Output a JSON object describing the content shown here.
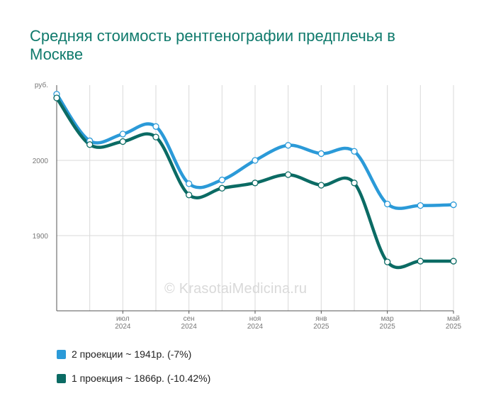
{
  "title": "Средняя стоимость рентгенографии предплечья в Москве",
  "watermark": "© KrasotaiMedicina.ru",
  "colors": {
    "series1": "#2b9ad8",
    "series2": "#0b6b64",
    "grid": "#d9d9d9",
    "axis": "#555555"
  },
  "legend": [
    {
      "label": "2 проекции ~ 1941р. (-7%)",
      "color": "#2b9ad8"
    },
    {
      "label": "1 проекция ~ 1866р. (-10.42%)",
      "color": "#0b6b64"
    }
  ],
  "chart_data": {
    "type": "line",
    "y_unit": "руб.",
    "ylim": [
      1800,
      2100
    ],
    "yticks": [
      1900,
      2000
    ],
    "grid": true,
    "x_ticks": [
      {
        "month": "июл",
        "year": "2024"
      },
      {
        "month": "сен",
        "year": "2024"
      },
      {
        "month": "ноя",
        "year": "2024"
      },
      {
        "month": "янв",
        "year": "2025"
      },
      {
        "month": "мар",
        "year": "2025"
      },
      {
        "month": "май",
        "year": "2025"
      }
    ],
    "categories": [
      "2024-05",
      "2024-06",
      "2024-07",
      "2024-08",
      "2024-09",
      "2024-10",
      "2024-11",
      "2024-12",
      "2025-01",
      "2025-02",
      "2025-03",
      "2025-04",
      "2025-05"
    ],
    "series": [
      {
        "name": "2 проекции",
        "color": "#2b9ad8",
        "values": [
          2088,
          2026,
          2035,
          2045,
          1969,
          1974,
          2000,
          2020,
          2009,
          2012,
          1942,
          1940,
          1941
        ]
      },
      {
        "name": "1 проекция",
        "color": "#0b6b64",
        "values": [
          2083,
          2021,
          2025,
          2031,
          1954,
          1963,
          1970,
          1981,
          1967,
          1970,
          1865,
          1866,
          1866
        ]
      }
    ]
  }
}
